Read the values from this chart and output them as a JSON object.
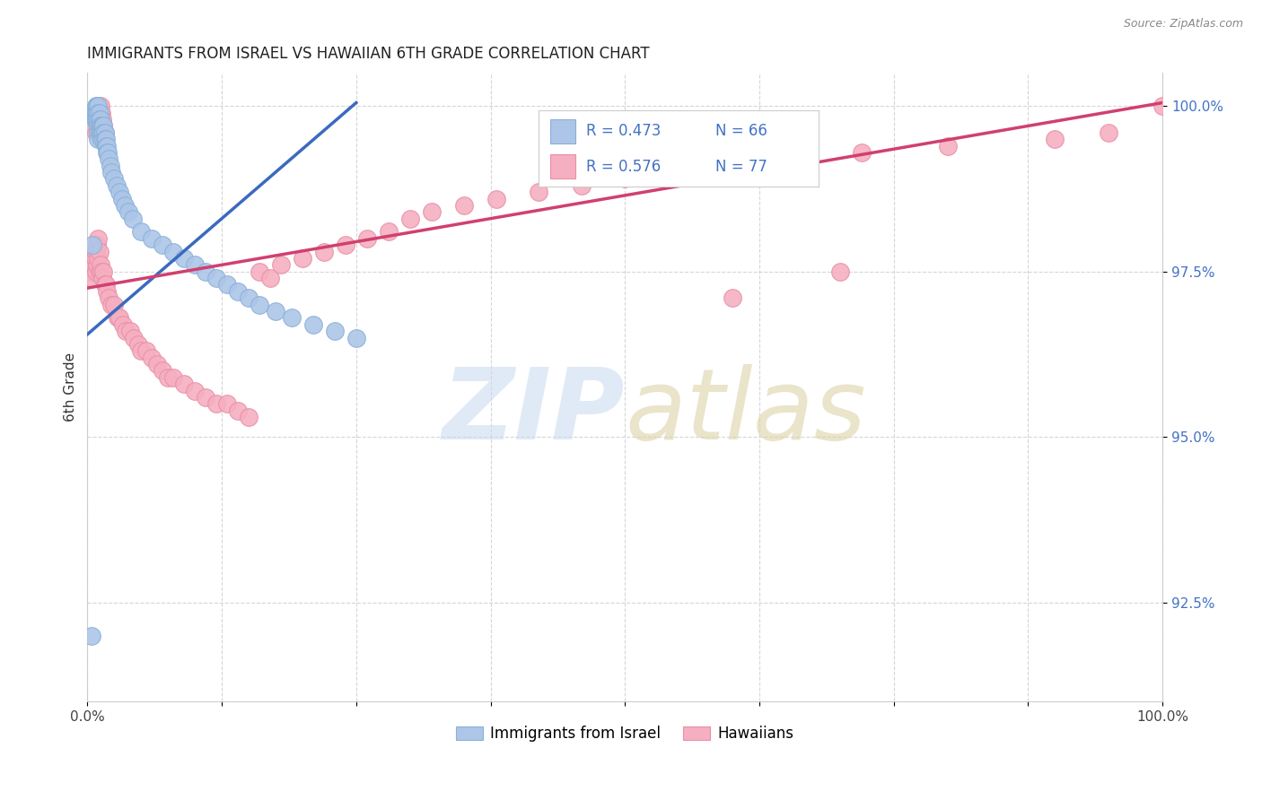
{
  "title": "IMMIGRANTS FROM ISRAEL VS HAWAIIAN 6TH GRADE CORRELATION CHART",
  "source": "Source: ZipAtlas.com",
  "ylabel": "6th Grade",
  "xlim": [
    0.0,
    1.0
  ],
  "ylim": [
    0.91,
    1.005
  ],
  "ytick_labels": [
    "92.5%",
    "95.0%",
    "97.5%",
    "100.0%"
  ],
  "ytick_positions": [
    0.925,
    0.95,
    0.975,
    1.0
  ],
  "legend_r1": "R = 0.473",
  "legend_n1": "N = 66",
  "legend_r2": "R = 0.576",
  "legend_n2": "N = 77",
  "legend_label1": "Immigrants from Israel",
  "legend_label2": "Hawaiians",
  "scatter_color_blue": "#adc6e8",
  "scatter_color_pink": "#f5afc0",
  "scatter_edge_blue": "#8ab0d8",
  "scatter_edge_pink": "#e890a8",
  "trendline_color_blue": "#3a6abf",
  "trendline_color_pink": "#d04070",
  "tick_color": "#4472c4",
  "R_color": "#4472c4",
  "N_color": "#4472c4",
  "blue_scatter_x": [
    0.005,
    0.007,
    0.007,
    0.008,
    0.008,
    0.008,
    0.009,
    0.009,
    0.009,
    0.01,
    0.01,
    0.01,
    0.01,
    0.01,
    0.01,
    0.011,
    0.011,
    0.011,
    0.011,
    0.012,
    0.012,
    0.012,
    0.013,
    0.013,
    0.013,
    0.014,
    0.014,
    0.015,
    0.015,
    0.015,
    0.016,
    0.016,
    0.017,
    0.017,
    0.018,
    0.018,
    0.019,
    0.02,
    0.021,
    0.022,
    0.025,
    0.027,
    0.03,
    0.032,
    0.035,
    0.038,
    0.042,
    0.05,
    0.06,
    0.07,
    0.08,
    0.09,
    0.1,
    0.11,
    0.12,
    0.13,
    0.14,
    0.15,
    0.16,
    0.175,
    0.19,
    0.21,
    0.23,
    0.25,
    0.005,
    0.004
  ],
  "blue_scatter_y": [
    0.999,
    0.998,
    0.999,
    1.0,
    0.999,
    0.998,
    1.0,
    0.999,
    0.998,
    1.0,
    0.999,
    0.998,
    0.997,
    0.996,
    0.995,
    0.999,
    0.998,
    0.997,
    0.996,
    0.998,
    0.997,
    0.996,
    0.997,
    0.996,
    0.995,
    0.997,
    0.996,
    0.997,
    0.996,
    0.995,
    0.996,
    0.995,
    0.995,
    0.994,
    0.994,
    0.993,
    0.993,
    0.992,
    0.991,
    0.99,
    0.989,
    0.988,
    0.987,
    0.986,
    0.985,
    0.984,
    0.983,
    0.981,
    0.98,
    0.979,
    0.978,
    0.977,
    0.976,
    0.975,
    0.974,
    0.973,
    0.972,
    0.971,
    0.97,
    0.969,
    0.968,
    0.967,
    0.966,
    0.965,
    0.979,
    0.92
  ],
  "pink_scatter_x": [
    0.004,
    0.005,
    0.006,
    0.007,
    0.008,
    0.008,
    0.009,
    0.009,
    0.01,
    0.01,
    0.011,
    0.011,
    0.012,
    0.013,
    0.014,
    0.015,
    0.016,
    0.017,
    0.018,
    0.02,
    0.022,
    0.025,
    0.028,
    0.03,
    0.033,
    0.036,
    0.04,
    0.043,
    0.047,
    0.05,
    0.055,
    0.06,
    0.065,
    0.07,
    0.075,
    0.08,
    0.09,
    0.1,
    0.11,
    0.12,
    0.13,
    0.14,
    0.15,
    0.16,
    0.17,
    0.18,
    0.2,
    0.22,
    0.24,
    0.26,
    0.28,
    0.3,
    0.32,
    0.35,
    0.38,
    0.42,
    0.46,
    0.5,
    0.54,
    0.58,
    0.65,
    0.72,
    0.8,
    0.9,
    0.95,
    1.0,
    0.6,
    0.7,
    0.008,
    0.009,
    0.01,
    0.011,
    0.012,
    0.013,
    0.014,
    0.015,
    0.016
  ],
  "pink_scatter_y": [
    0.975,
    0.974,
    0.976,
    0.977,
    0.978,
    0.975,
    0.979,
    0.976,
    0.98,
    0.977,
    0.978,
    0.975,
    0.976,
    0.975,
    0.974,
    0.975,
    0.973,
    0.973,
    0.972,
    0.971,
    0.97,
    0.97,
    0.968,
    0.968,
    0.967,
    0.966,
    0.966,
    0.965,
    0.964,
    0.963,
    0.963,
    0.962,
    0.961,
    0.96,
    0.959,
    0.959,
    0.958,
    0.957,
    0.956,
    0.955,
    0.955,
    0.954,
    0.953,
    0.975,
    0.974,
    0.976,
    0.977,
    0.978,
    0.979,
    0.98,
    0.981,
    0.983,
    0.984,
    0.985,
    0.986,
    0.987,
    0.988,
    0.989,
    0.99,
    0.991,
    0.992,
    0.993,
    0.994,
    0.995,
    0.996,
    1.0,
    0.971,
    0.975,
    0.996,
    0.997,
    0.998,
    0.999,
    1.0,
    0.999,
    0.998,
    0.997,
    0.996
  ],
  "blue_trend_x0": 0.0,
  "blue_trend_y0": 0.9655,
  "blue_trend_x1": 0.25,
  "blue_trend_y1": 1.0005,
  "pink_trend_x0": 0.0,
  "pink_trend_y0": 0.9725,
  "pink_trend_x1": 1.0,
  "pink_trend_y1": 1.0005
}
